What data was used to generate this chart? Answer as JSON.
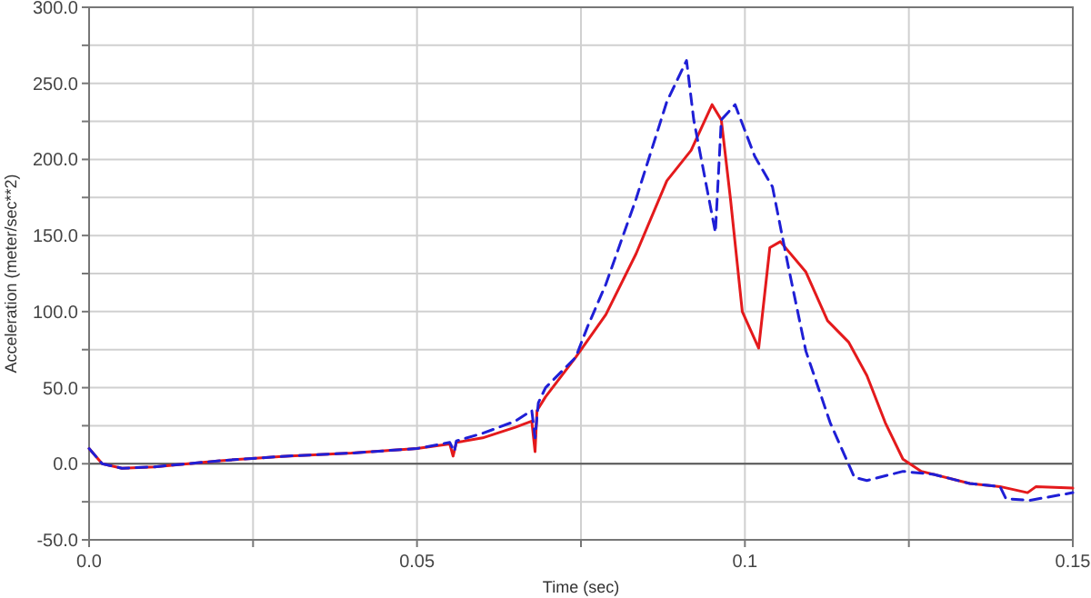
{
  "chart_data": {
    "type": "line",
    "xlabel": "Time (sec)",
    "ylabel": "Acceleration (meter/sec**2)",
    "xlim": [
      0,
      0.15
    ],
    "ylim": [
      -50,
      300
    ],
    "xticks": [
      {
        "value": 0,
        "label": "0.0"
      },
      {
        "value": 0.025,
        "label": null
      },
      0.05,
      {
        "value": 0.075,
        "label": null
      },
      0.1,
      {
        "value": 0.125,
        "label": null
      },
      0.15
    ],
    "yticks": [
      {
        "value": -50,
        "label": "-50.0"
      },
      {
        "value": -25,
        "label": null
      },
      {
        "value": 0,
        "label": "0.0"
      },
      {
        "value": 25,
        "label": null
      },
      {
        "value": 50,
        "label": "50.0"
      },
      {
        "value": 75,
        "label": null
      },
      {
        "value": 100,
        "label": "100.0"
      },
      {
        "value": 125,
        "label": null
      },
      {
        "value": 150,
        "label": "150.0"
      },
      {
        "value": 175,
        "label": null
      },
      {
        "value": 200,
        "label": "200.0"
      },
      {
        "value": 225,
        "label": null
      },
      {
        "value": 250,
        "label": "250.0"
      },
      {
        "value": 275,
        "label": null
      },
      {
        "value": 300,
        "label": "300.0"
      }
    ],
    "grid": true,
    "marker": "none",
    "ref_lines": [
      {
        "axis": "y",
        "value": 0,
        "color": "#555555"
      }
    ],
    "series": [
      {
        "color": "#e41a1c",
        "line_style": "solid",
        "x": [
          0,
          0.002,
          0.005,
          0.01,
          0.02,
          0.03,
          0.04,
          0.05,
          0.055,
          0.0555,
          0.056,
          0.06,
          0.065,
          0.0675,
          0.068,
          0.0683,
          0.0696,
          0.0742,
          0.0788,
          0.0834,
          0.0881,
          0.0918,
          0.095,
          0.0964,
          0.0978,
          0.0996,
          0.1021,
          0.1038,
          0.1054,
          0.1093,
          0.1126,
          0.1158,
          0.1186,
          0.1214,
          0.1241,
          0.1269,
          0.1343,
          0.1389,
          0.1431,
          0.1444,
          0.15
        ],
        "values": [
          10,
          0,
          -3,
          -2,
          2,
          5,
          7,
          10,
          13,
          5,
          14,
          17,
          24,
          28,
          8,
          35,
          44,
          70,
          98,
          138,
          186,
          206,
          236,
          226,
          174,
          100,
          76,
          142,
          146,
          126,
          94,
          80,
          58,
          27,
          3,
          -5,
          -13,
          -15,
          -19,
          -15,
          -16
        ]
      },
      {
        "color": "#1f1fd6",
        "line_style": "dashed",
        "x": [
          0,
          0.002,
          0.005,
          0.01,
          0.02,
          0.03,
          0.04,
          0.05,
          0.055,
          0.0557,
          0.056,
          0.06,
          0.065,
          0.0675,
          0.068,
          0.0685,
          0.0696,
          0.0742,
          0.076,
          0.0788,
          0.0834,
          0.0881,
          0.0911,
          0.0922,
          0.0955,
          0.0964,
          0.0985,
          0.1015,
          0.1042,
          0.1066,
          0.1093,
          0.113,
          0.1167,
          0.1186,
          0.1241,
          0.1288,
          0.1343,
          0.1389,
          0.1398,
          0.1435,
          0.15
        ],
        "values": [
          10,
          0,
          -3,
          -2,
          2,
          5,
          7,
          10,
          14,
          8,
          15,
          20,
          28,
          35,
          17,
          40,
          50,
          70,
          90,
          118,
          174,
          238,
          265,
          226,
          152,
          226,
          236,
          202,
          182,
          130,
          74,
          27,
          -9,
          -11,
          -5,
          -7,
          -13,
          -15,
          -23,
          -24,
          -19
        ]
      }
    ]
  }
}
